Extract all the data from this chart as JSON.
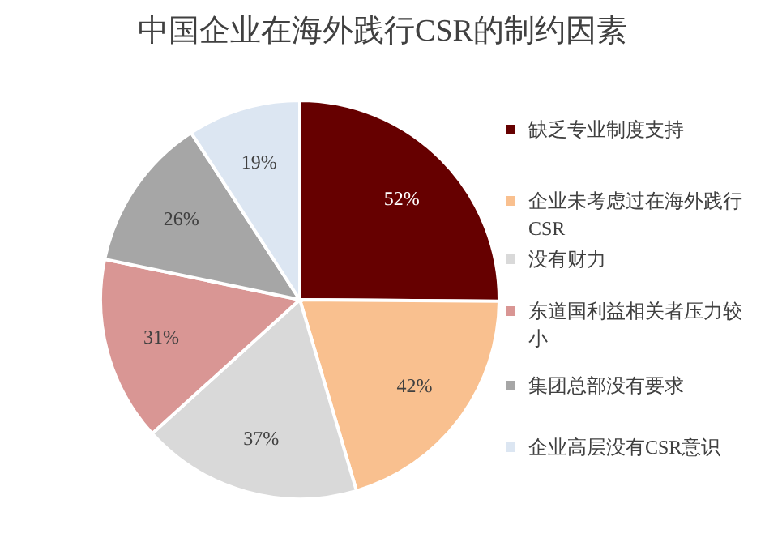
{
  "chart_data": {
    "type": "pie",
    "title": "中国企业在海外践行CSR的制约因素",
    "categories": [
      "缺乏专业制度支持",
      "企业未考虑过在海外践行CSR",
      "没有财力",
      "东道国利益相关者压力较小",
      "集团总部没有要求",
      "企业高层没有CSR意识"
    ],
    "values": [
      52,
      42,
      37,
      31,
      26,
      19
    ],
    "value_labels": [
      "52%",
      "42%",
      "37%",
      "31%",
      "26%",
      "19%"
    ],
    "colors": [
      "#660000",
      "#f9c08f",
      "#d9d9d9",
      "#d99694",
      "#a6a6a6",
      "#dce6f2"
    ],
    "legend": "right"
  }
}
